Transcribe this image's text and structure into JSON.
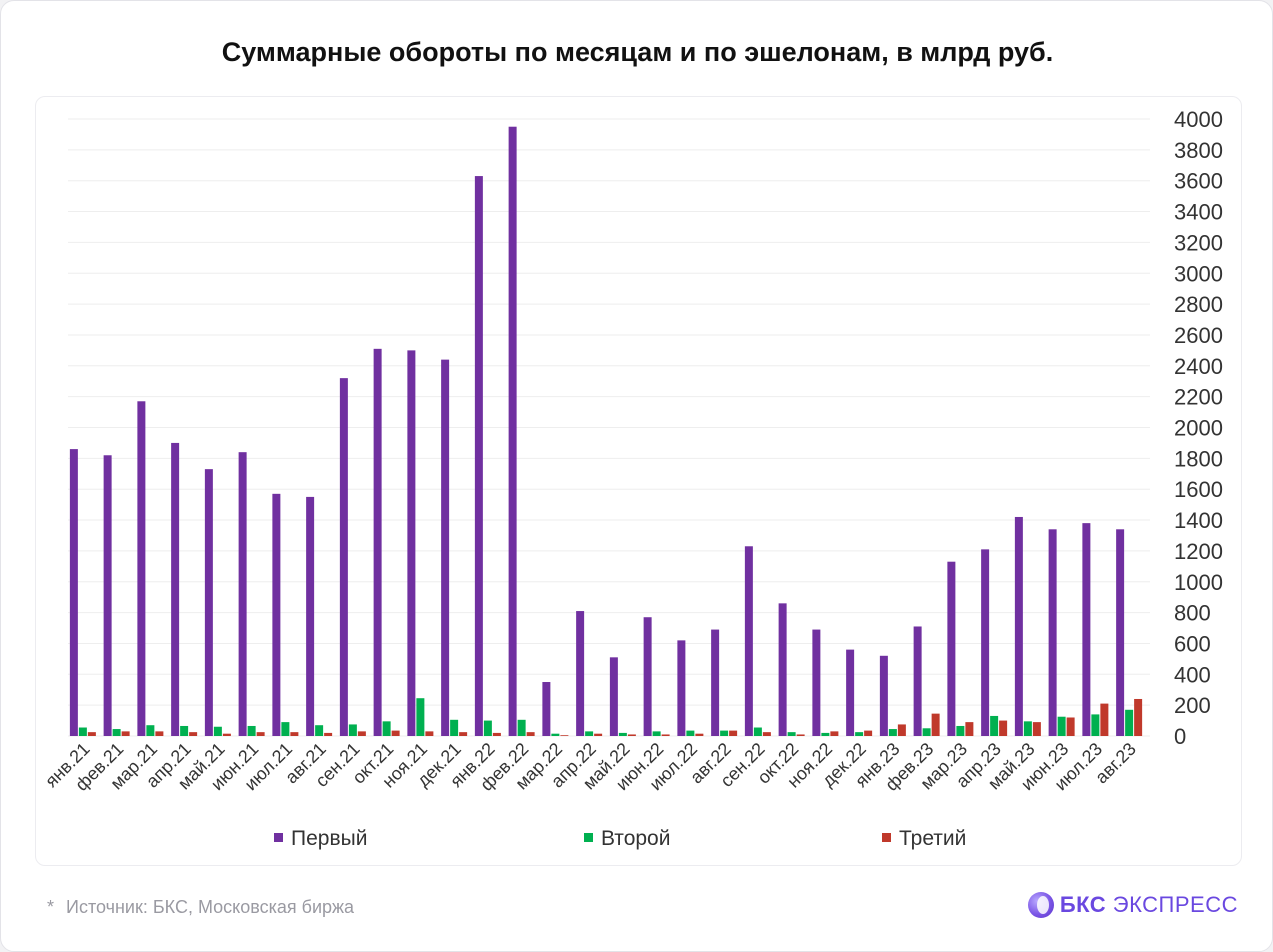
{
  "title": "Суммарные обороты по месяцам и по эшелонам, в млрд руб.",
  "footer": {
    "star": "*",
    "source": "Источник: БКС, Московская биржа",
    "brand_bold": "БКС",
    "brand_rest": "ЭКСПРЕСС",
    "logo_icon": "bcs-logo-icon"
  },
  "colors": {
    "first": "#7030a0",
    "second": "#00b050",
    "third": "#c0392b",
    "grid": "#eeeeee",
    "tick_text": "#333333"
  },
  "chart_data": {
    "type": "bar",
    "title": "Суммарные обороты по месяцам и по эшелонам, в млрд руб.",
    "xlabel": "",
    "ylabel": "",
    "ylim": [
      0,
      4000
    ],
    "y_ticks": [
      0,
      200,
      400,
      600,
      800,
      1000,
      1200,
      1400,
      1600,
      1800,
      2000,
      2200,
      2400,
      2600,
      2800,
      3000,
      3200,
      3400,
      3600,
      3800,
      4000
    ],
    "y_axis_position": "right",
    "grid": true,
    "legend_position": "bottom",
    "categories": [
      "янв.21",
      "фев.21",
      "мар.21",
      "апр.21",
      "май.21",
      "июн.21",
      "июл.21",
      "авг.21",
      "сен.21",
      "окт.21",
      "ноя.21",
      "дек.21",
      "янв.22",
      "фев.22",
      "мар.22",
      "апр.22",
      "май.22",
      "июн.22",
      "июл.22",
      "авг.22",
      "сен.22",
      "окт.22",
      "ноя.22",
      "дек.22",
      "янв.23",
      "фев.23",
      "мар.23",
      "апр.23",
      "май.23",
      "июн.23",
      "июл.23",
      "авг.23"
    ],
    "series": [
      {
        "name": "Первый",
        "color": "#7030a0",
        "values": [
          1860,
          1820,
          2170,
          1900,
          1730,
          1840,
          1570,
          1550,
          2320,
          2510,
          2500,
          2440,
          3630,
          3950,
          350,
          810,
          510,
          770,
          620,
          690,
          1230,
          860,
          690,
          560,
          520,
          710,
          1130,
          1210,
          1420,
          1340,
          1380,
          1340
        ]
      },
      {
        "name": "Второй",
        "color": "#00b050",
        "values": [
          55,
          45,
          70,
          65,
          60,
          65,
          90,
          70,
          75,
          95,
          245,
          105,
          100,
          105,
          15,
          30,
          20,
          30,
          35,
          35,
          55,
          25,
          20,
          25,
          45,
          50,
          65,
          130,
          95,
          125,
          140,
          170
        ]
      },
      {
        "name": "Третий",
        "color": "#c0392b",
        "values": [
          25,
          30,
          30,
          25,
          15,
          25,
          25,
          20,
          30,
          35,
          30,
          25,
          20,
          25,
          5,
          15,
          10,
          10,
          15,
          35,
          25,
          10,
          30,
          35,
          75,
          145,
          90,
          100,
          90,
          120,
          210,
          240
        ]
      }
    ]
  }
}
